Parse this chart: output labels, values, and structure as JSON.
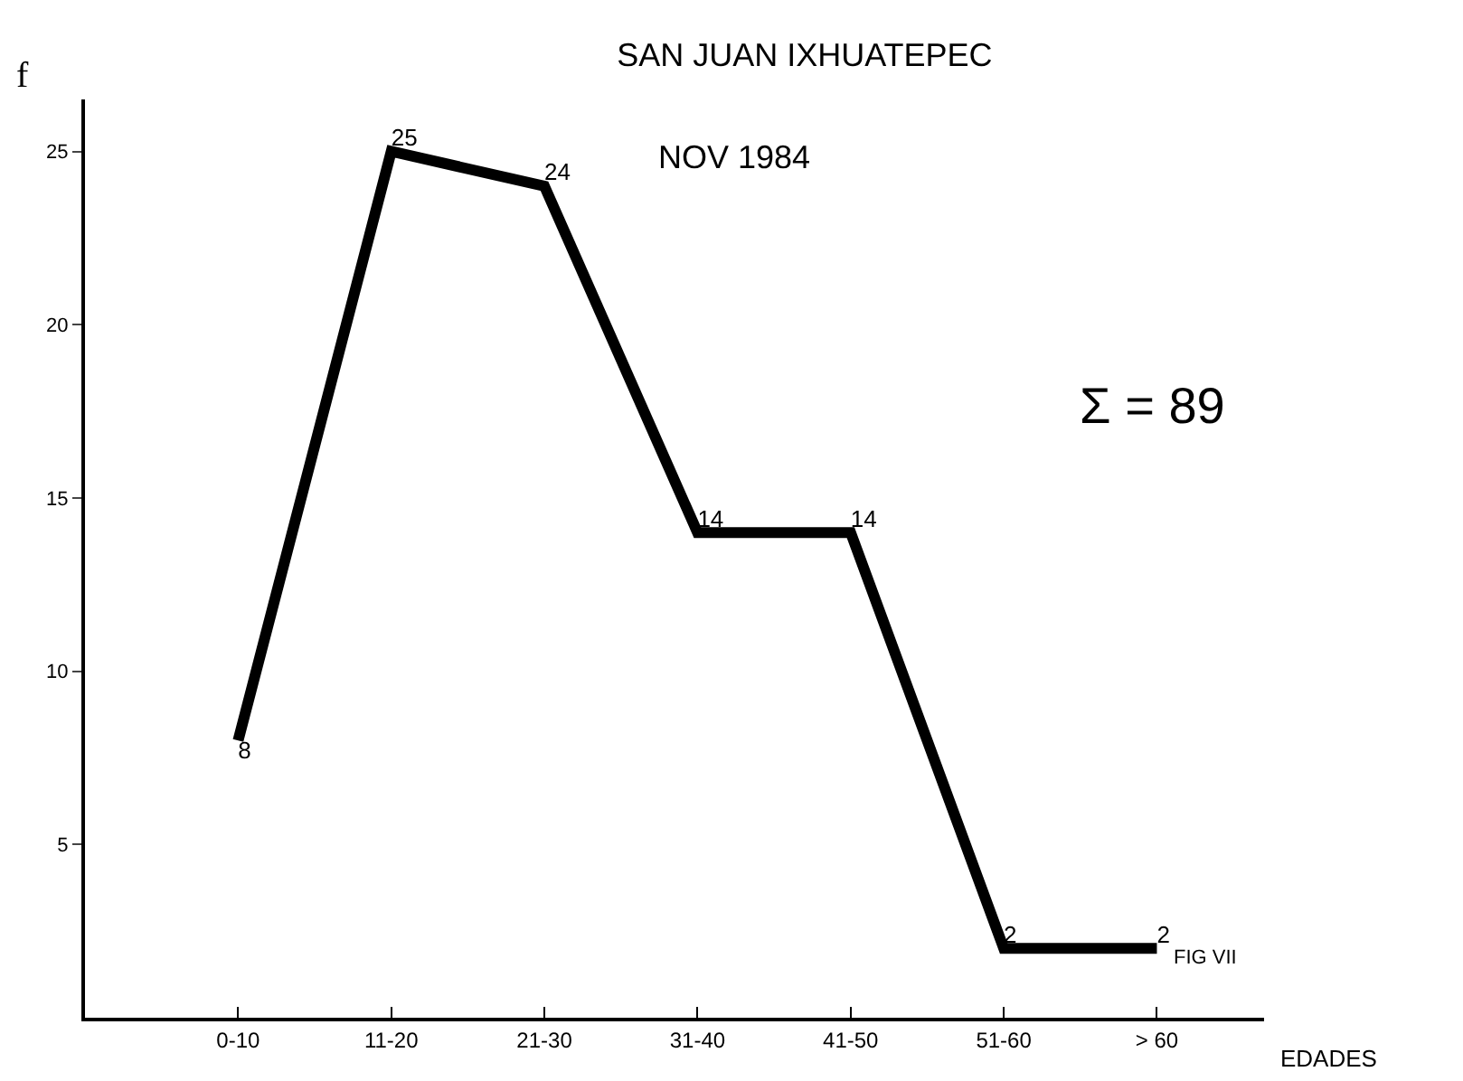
{
  "chart_data": {
    "type": "line",
    "title": "SAN JUAN IXHUATEPEC",
    "subtitle": "NOV 1984",
    "xlabel": "EDADES",
    "ylabel": "f",
    "categories": [
      "0-10",
      "11-20",
      "21-30",
      "31-40",
      "41-50",
      "51-60",
      "> 60"
    ],
    "series": [
      {
        "color": "#000000",
        "values": [
          8,
          25,
          24,
          14,
          14,
          2,
          2
        ]
      }
    ],
    "ylim": [
      0,
      26.5
    ],
    "yticks": [
      5,
      10,
      15,
      20,
      25
    ],
    "data_labels": true,
    "grid": false,
    "marker": "none",
    "line_style": "solid",
    "annotations": [
      "Σ = 89",
      "FIG VII"
    ]
  }
}
